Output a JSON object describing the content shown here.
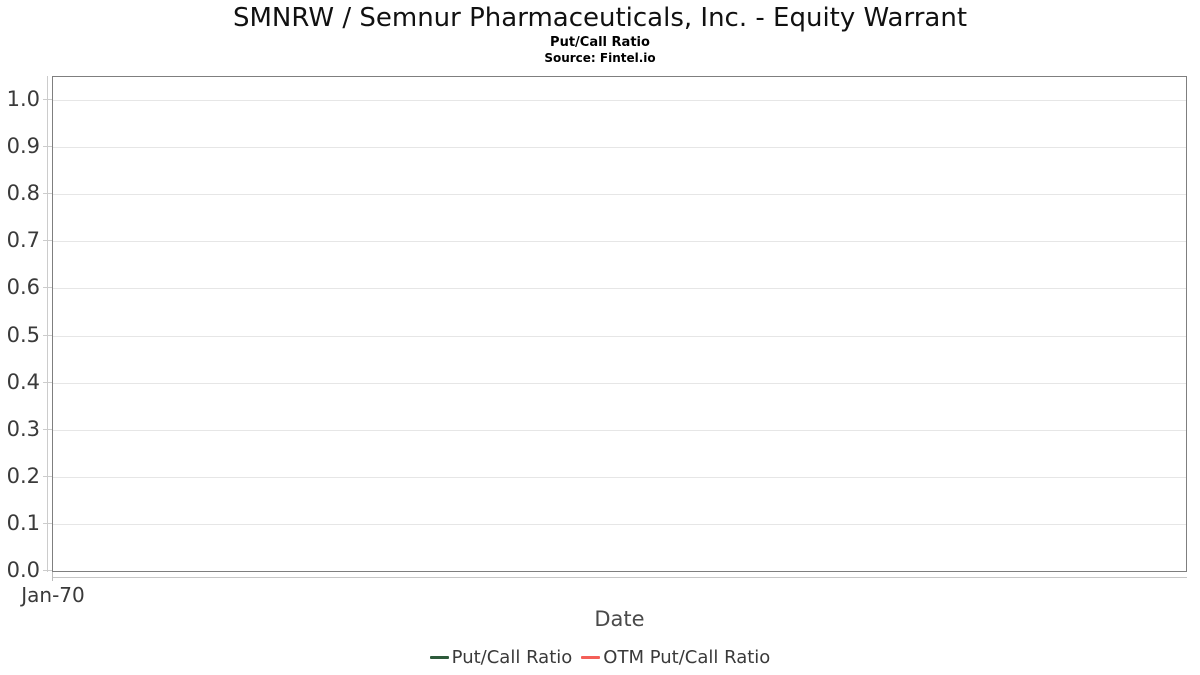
{
  "chart_data": {
    "type": "line",
    "title": "SMNRW / Semnur Pharmaceuticals, Inc. - Equity Warrant",
    "subtitle": "Put/Call Ratio",
    "source": "Source: Fintel.io",
    "xlabel": "Date",
    "ylabel": "",
    "x_tick_labels": [
      "Jan-70"
    ],
    "y_tick_labels": [
      "0.0",
      "0.1",
      "0.2",
      "0.3",
      "0.4",
      "0.5",
      "0.6",
      "0.7",
      "0.8",
      "0.9",
      "1.0"
    ],
    "ylim": [
      0.0,
      1.05
    ],
    "grid": true,
    "legend_position": "bottom",
    "series": [
      {
        "name": "Put/Call Ratio",
        "color": "#2d5a3a",
        "x": [],
        "values": []
      },
      {
        "name": "OTM Put/Call Ratio",
        "color": "#f45f58",
        "x": [],
        "values": []
      }
    ]
  },
  "colors": {
    "plot_border": "#7f7f7f",
    "gridline": "#e6e6e6",
    "axis_line": "#cccccc",
    "text_dark": "#3a3a3a"
  }
}
